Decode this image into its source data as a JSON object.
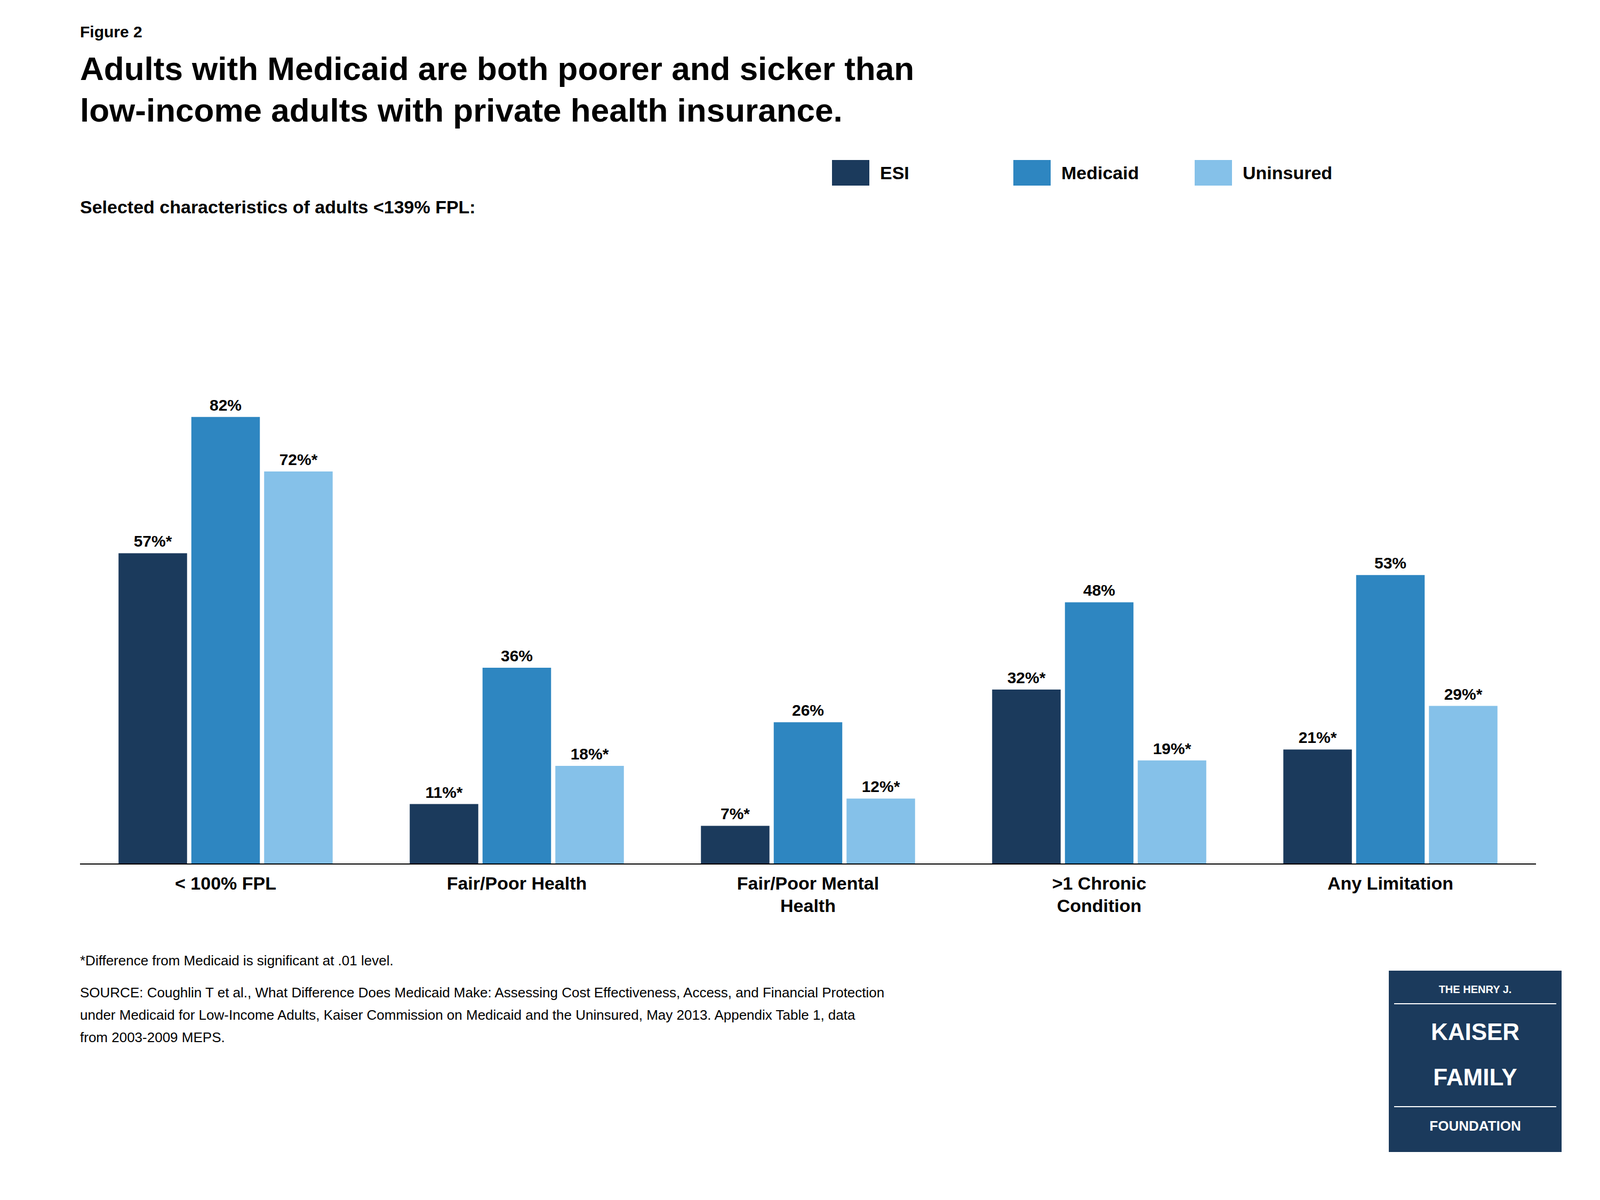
{
  "chart_data": {
    "type": "bar",
    "title": "Adults with Medicaid are both poorer and sicker than\nlow-income adults with private health insurance.",
    "subtitle": "Selected characteristics of adults <139% FPL:",
    "categories": [
      "< 100% FPL",
      "Fair/Poor Health",
      "Fair/Poor Mental\nHealth",
      ">1 Chronic\nCondition",
      "Any Limitation"
    ],
    "series": [
      {
        "name": "ESI",
        "color": "#1b3a5c",
        "values": [
          57,
          11,
          7,
          32,
          21
        ],
        "value_labels": [
          "57%*",
          "11%*",
          "7%*",
          "32%*",
          "21%*"
        ]
      },
      {
        "name": "Medicaid",
        "color": "#2e86c1",
        "values": [
          82,
          36,
          26,
          48,
          53
        ],
        "value_labels": [
          "82%",
          "36%",
          "26%",
          "48%",
          "53%"
        ]
      },
      {
        "name": "Uninsured",
        "color": "#85c1e9",
        "values": [
          72,
          18,
          12,
          19,
          29
        ],
        "value_labels": [
          "72%*",
          "18%*",
          "12%*",
          "19%*",
          "29%*"
        ]
      }
    ],
    "ylim": [
      0,
      90
    ],
    "grid": false,
    "legend": "top",
    "data_labels": true,
    "tick_labels": "x",
    "annotations": [
      "Figure 2",
      "*Difference from Medicaid is significant at .01 level.",
      "SOURCE: Coughlin T et al., What Difference Does Medicaid Make: Assessing Cost Effectiveness, Access, and Financial Protection",
      "under Medicaid for Low-Income Adults, Kaiser Commission on Medicaid and the Uninsured, May 2013. Appendix Table 1, data",
      "from 2003-2009 MEPS.",
      "THE HENRY J.",
      "KAISER",
      "FAMILY",
      "FOUNDATION"
    ]
  }
}
